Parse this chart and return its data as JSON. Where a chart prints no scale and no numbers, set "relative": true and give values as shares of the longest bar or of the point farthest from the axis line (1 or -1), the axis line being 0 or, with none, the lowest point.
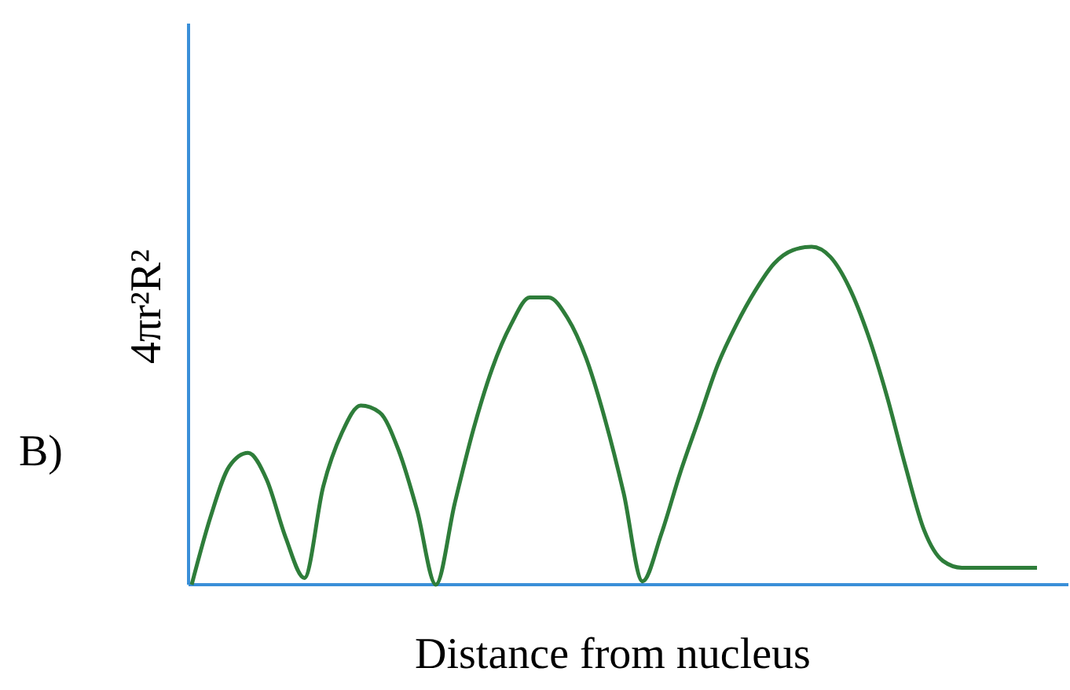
{
  "chart_data": {
    "type": "line",
    "relative": true,
    "xlabel": "Distance from nucleus",
    "ylabel": "4πr²R²",
    "annotations": [
      "B)"
    ],
    "categories": [
      null,
      null,
      null,
      null,
      null,
      null,
      null,
      null,
      null,
      null,
      null,
      null,
      null,
      null,
      null,
      null,
      null,
      null,
      null,
      null,
      null,
      null,
      null,
      null,
      null,
      null,
      null,
      null,
      null,
      null,
      null,
      null,
      null,
      null,
      null,
      null,
      null,
      null,
      null,
      null,
      null,
      null,
      null,
      null,
      null,
      null
    ],
    "series": [
      {
        "color": "#2e7d3a",
        "values": [
          0,
          0.2,
          0.35,
          0.39,
          0.31,
          0.14,
          0.02,
          0.29,
          0.45,
          0.53,
          0.51,
          0.4,
          0.22,
          0,
          0.24,
          0.46,
          0.64,
          0.77,
          0.85,
          0.85,
          0.79,
          0.67,
          0.49,
          0.27,
          0.01,
          0.15,
          0.33,
          0.49,
          0.65,
          0.77,
          0.87,
          0.95,
          0.99,
          1,
          0.97,
          0.88,
          0.74,
          0.56,
          0.35,
          0.16,
          0.07,
          0.05,
          0.05,
          0.05,
          0.05,
          0.05
        ]
      }
    ]
  }
}
